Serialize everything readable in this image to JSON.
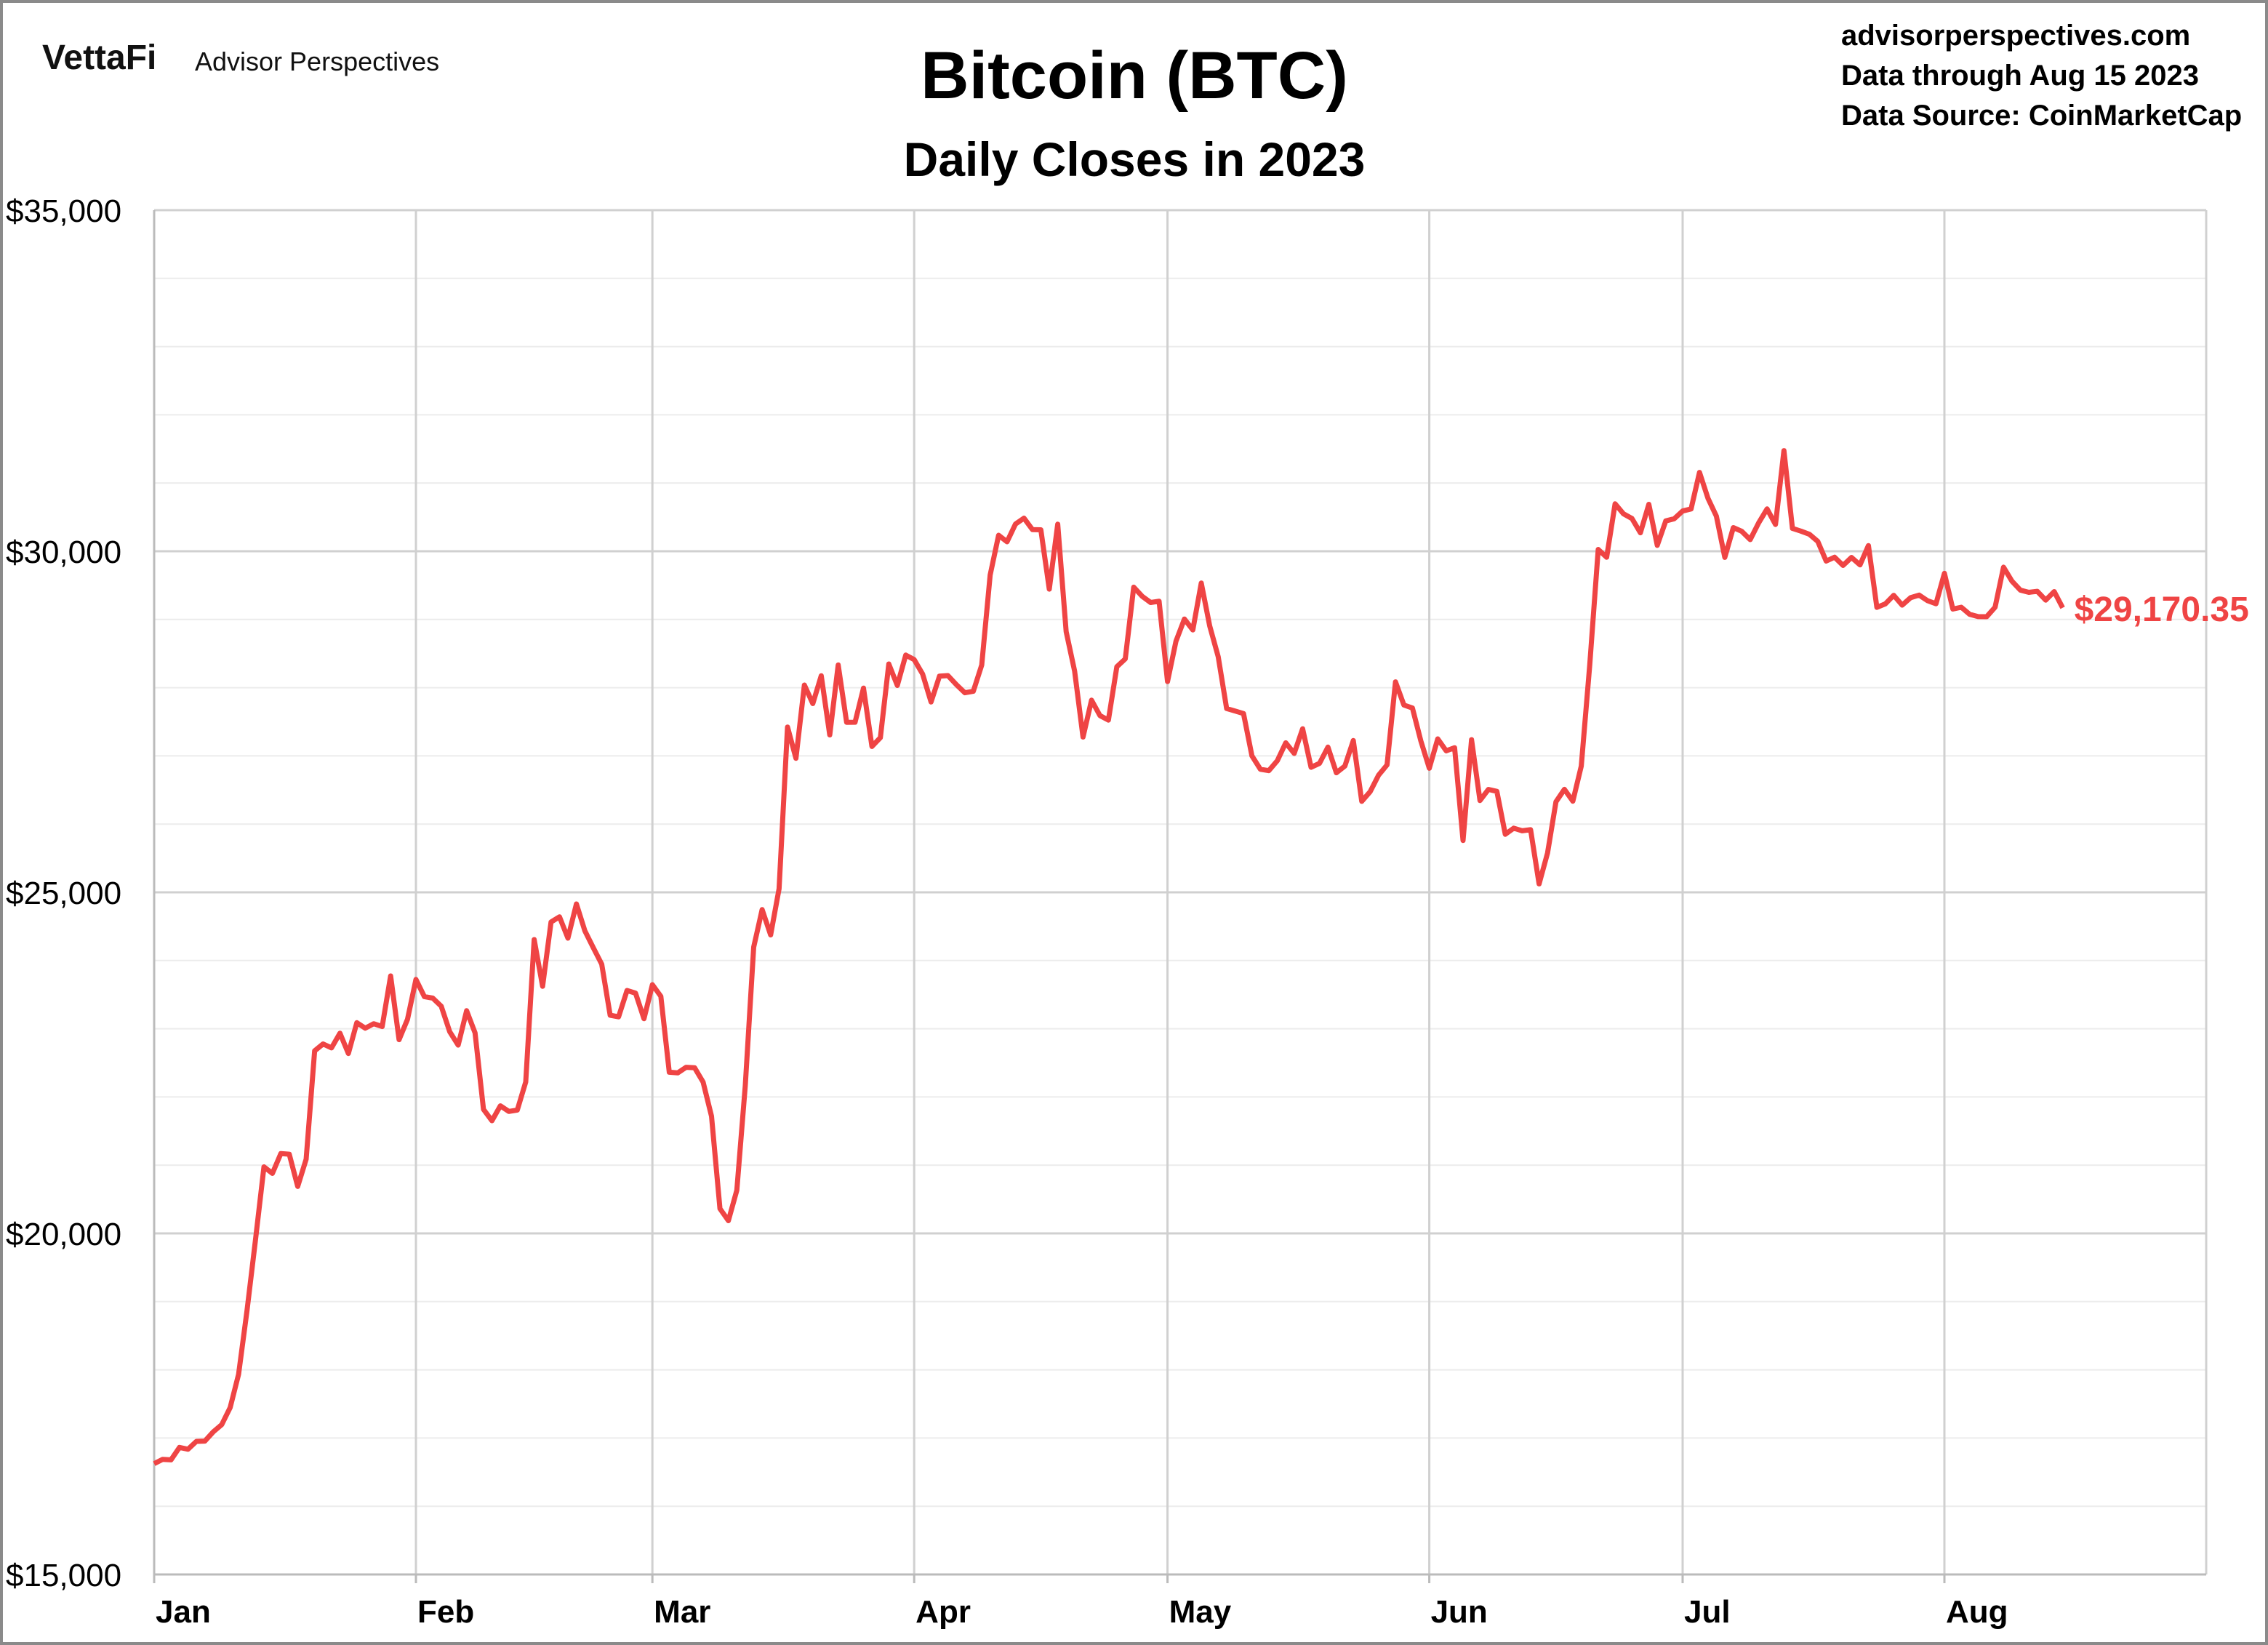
{
  "header": {
    "logo_text": "VettaFi",
    "brand": "Advisor Perspectives",
    "title": "Bitcoin (BTC)",
    "subtitle": "Daily Closes in 2023",
    "site": "advisorperspectives.com",
    "data_through": "Data through Aug 15 2023",
    "source": "Data Source: CoinMarketCap"
  },
  "chart_data": {
    "type": "line",
    "title": "Bitcoin (BTC)",
    "subtitle": "Daily Closes in 2023",
    "xlabel": "",
    "ylabel": "",
    "xlim": [
      "2023-01-01",
      "2023-09-01"
    ],
    "ylim": [
      15000,
      35000
    ],
    "y_ticks": [
      15000,
      20000,
      25000,
      30000,
      35000
    ],
    "y_tick_labels": [
      "$15,000",
      "$20,000",
      "$25,000",
      "$30,000",
      "$35,000"
    ],
    "y_minor_step": 1000,
    "x_ticks": [
      "2023-01-01",
      "2023-02-01",
      "2023-03-01",
      "2023-04-01",
      "2023-05-01",
      "2023-06-01",
      "2023-07-01",
      "2023-08-01"
    ],
    "x_tick_labels": [
      "Jan",
      "Feb",
      "Mar",
      "Apr",
      "May",
      "Jun",
      "Jul",
      "Aug"
    ],
    "grid": true,
    "line_color": "#ef4444",
    "last_value_label": "$29,170.35",
    "daily_closes": [
      {
        "month": "2023-01",
        "values": [
          16625,
          16688,
          16680,
          16863,
          16836,
          16951,
          16955,
          17091,
          17196,
          17446,
          17934,
          18869,
          19910,
          20976,
          20880,
          21169,
          21161,
          20689,
          21086,
          22676,
          22777,
          22720,
          22935,
          22637,
          23088,
          23009,
          23074,
          23032,
          23774,
          22840,
          23139
        ]
      },
      {
        "month": "2023-02",
        "values": [
          23723,
          23471,
          23449,
          23331,
          22955,
          22760,
          23264,
          22939,
          21819,
          21651,
          21870,
          21788,
          21808,
          22221,
          24307,
          23623,
          24565,
          24641,
          24328,
          24829,
          24436,
          24188,
          23947,
          23198,
          23175,
          23561,
          23522,
          23147
        ]
      },
      {
        "month": "2023-03",
        "values": [
          23646,
          23475,
          22362,
          22353,
          22435,
          22429,
          22219,
          21718,
          20363,
          20187,
          20632,
          22163,
          24197,
          24746,
          24375,
          25052,
          27423,
          26965,
          28038,
          27767,
          28175,
          27307,
          28333,
          27493,
          27494,
          27994,
          27139,
          27268,
          28348,
          28033,
          28478
        ]
      },
      {
        "month": "2023-04",
        "values": [
          28411,
          28199,
          27790,
          28168,
          28177,
          28044,
          27925,
          27947,
          28333,
          29652,
          30235,
          30139,
          30399,
          30485,
          30318,
          30315,
          29445,
          30397,
          28822,
          28245,
          27276,
          27817,
          27591,
          27525,
          28307,
          28422,
          29473,
          29340,
          29248,
          29268
        ]
      },
      {
        "month": "2023-05",
        "values": [
          28091,
          28680,
          29006,
          28847,
          29534,
          28905,
          28454,
          27694,
          27658,
          27621,
          27000,
          26804,
          26784,
          26930,
          27192,
          27036,
          27398,
          26833,
          26890,
          27129,
          26753,
          26851,
          27225,
          26334,
          26476,
          26719,
          26868,
          28085,
          27745,
          27702,
          27219
        ]
      },
      {
        "month": "2023-06",
        "values": [
          26819,
          27249,
          27075,
          27119,
          25760,
          27238,
          26345,
          26508,
          26480,
          25851,
          25940,
          25902,
          25918,
          25124,
          25576,
          26327,
          26510,
          26336,
          26851,
          28327,
          30027,
          29912,
          30695,
          30548,
          30480,
          30271,
          30688,
          30086,
          30445,
          30477
        ]
      },
      {
        "month": "2023-07",
        "values": [
          30590,
          30620,
          31156,
          30777,
          30514,
          29910,
          30346,
          30292,
          30171,
          30415,
          30620,
          30392,
          31476,
          30335,
          30295,
          30249,
          30145,
          29856,
          29913,
          29792,
          29909,
          29800,
          30083,
          29177,
          29228,
          29354,
          29210,
          29319,
          29357,
          29275,
          29230
        ]
      },
      {
        "month": "2023-08",
        "values": [
          29676,
          29152,
          29179,
          29075,
          29042,
          29041,
          29180,
          29766,
          29561,
          29430,
          29398,
          29413,
          29284,
          29408,
          29170.35
        ]
      }
    ]
  }
}
